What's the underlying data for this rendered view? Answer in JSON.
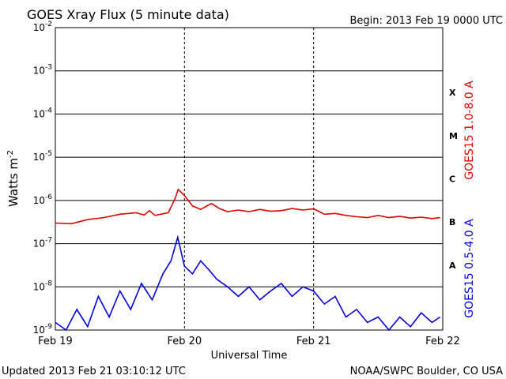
{
  "header": {
    "title": "GOES Xray Flux (5 minute data)",
    "begin": "Begin:  2013 Feb 19 0000 UTC"
  },
  "footer": {
    "updated": "Updated 2013 Feb 21 03:10:12 UTC",
    "credit": "NOAA/SWPC Boulder, CO USA"
  },
  "chart_data": {
    "type": "line",
    "title": "GOES Xray Flux (5 minute data)",
    "xlabel": "Universal Time",
    "ylabel": "Watts m",
    "ylabel_sup": "-2",
    "yscale": "log",
    "ylim": [
      1e-09,
      0.01
    ],
    "xlim": [
      "2013-02-19T00:00",
      "2013-02-22T00:00"
    ],
    "x_ticks": [
      "Feb 19",
      "Feb 20",
      "Feb 21",
      "Feb 22"
    ],
    "y_ticks": [
      {
        "base": "10",
        "exp": "-2"
      },
      {
        "base": "10",
        "exp": "-3"
      },
      {
        "base": "10",
        "exp": "-4"
      },
      {
        "base": "10",
        "exp": "-5"
      },
      {
        "base": "10",
        "exp": "-6"
      },
      {
        "base": "10",
        "exp": "-7"
      },
      {
        "base": "10",
        "exp": "-8"
      },
      {
        "base": "10",
        "exp": "-9"
      }
    ],
    "flare_classes": [
      "X",
      "M",
      "C",
      "B",
      "A"
    ],
    "grid": true,
    "series": [
      {
        "name": "GOES15 1.0-8.0 A",
        "color": "#e00000",
        "points": [
          [
            "2013-02-19T00:00",
            3e-07
          ],
          [
            "2013-02-19T03:00",
            2.9e-07
          ],
          [
            "2013-02-19T06:00",
            3.6e-07
          ],
          [
            "2013-02-19T09:00",
            4e-07
          ],
          [
            "2013-02-19T12:00",
            4.8e-07
          ],
          [
            "2013-02-19T15:00",
            5.2e-07
          ],
          [
            "2013-02-19T16:30",
            4.6e-07
          ],
          [
            "2013-02-19T17:30",
            5.8e-07
          ],
          [
            "2013-02-19T18:30",
            4.5e-07
          ],
          [
            "2013-02-19T21:00",
            5.2e-07
          ],
          [
            "2013-02-19T22:15",
            1.1e-06
          ],
          [
            "2013-02-19T22:50",
            1.8e-06
          ],
          [
            "2013-02-20T00:00",
            1.3e-06
          ],
          [
            "2013-02-20T01:30",
            7.5e-07
          ],
          [
            "2013-02-20T03:00",
            6.2e-07
          ],
          [
            "2013-02-20T05:00",
            8.5e-07
          ],
          [
            "2013-02-20T06:30",
            6.5e-07
          ],
          [
            "2013-02-20T08:00",
            5.5e-07
          ],
          [
            "2013-02-20T10:00",
            6e-07
          ],
          [
            "2013-02-20T12:00",
            5.5e-07
          ],
          [
            "2013-02-20T14:00",
            6.2e-07
          ],
          [
            "2013-02-20T16:00",
            5.6e-07
          ],
          [
            "2013-02-20T18:00",
            5.8e-07
          ],
          [
            "2013-02-20T20:00",
            6.5e-07
          ],
          [
            "2013-02-20T22:00",
            6e-07
          ],
          [
            "2013-02-21T00:00",
            6.4e-07
          ],
          [
            "2013-02-21T02:00",
            4.8e-07
          ],
          [
            "2013-02-21T04:00",
            5e-07
          ],
          [
            "2013-02-21T06:00",
            4.5e-07
          ],
          [
            "2013-02-21T08:00",
            4.2e-07
          ],
          [
            "2013-02-21T10:00",
            4e-07
          ],
          [
            "2013-02-21T12:00",
            4.5e-07
          ],
          [
            "2013-02-21T14:00",
            4e-07
          ],
          [
            "2013-02-21T16:00",
            4.3e-07
          ],
          [
            "2013-02-21T18:00",
            3.9e-07
          ],
          [
            "2013-02-21T20:00",
            4.1e-07
          ],
          [
            "2013-02-21T22:00",
            3.8e-07
          ],
          [
            "2013-02-21T23:30",
            4e-07
          ]
        ]
      },
      {
        "name": "GOES15 0.5-4.0 A",
        "color": "#0000e0",
        "points": [
          [
            "2013-02-19T00:00",
            1.5e-09
          ],
          [
            "2013-02-19T02:00",
            1e-09
          ],
          [
            "2013-02-19T04:00",
            3e-09
          ],
          [
            "2013-02-19T06:00",
            1.2e-09
          ],
          [
            "2013-02-19T08:00",
            6e-09
          ],
          [
            "2013-02-19T10:00",
            2e-09
          ],
          [
            "2013-02-19T12:00",
            8e-09
          ],
          [
            "2013-02-19T14:00",
            3e-09
          ],
          [
            "2013-02-19T16:00",
            1.2e-08
          ],
          [
            "2013-02-19T18:00",
            5e-09
          ],
          [
            "2013-02-19T20:00",
            2e-08
          ],
          [
            "2013-02-19T21:30",
            4e-08
          ],
          [
            "2013-02-19T22:45",
            1.4e-07
          ],
          [
            "2013-02-20T00:00",
            3e-08
          ],
          [
            "2013-02-20T01:30",
            2e-08
          ],
          [
            "2013-02-20T03:00",
            4e-08
          ],
          [
            "2013-02-20T04:30",
            2.5e-08
          ],
          [
            "2013-02-20T06:00",
            1.5e-08
          ],
          [
            "2013-02-20T08:00",
            1e-08
          ],
          [
            "2013-02-20T10:00",
            6e-09
          ],
          [
            "2013-02-20T12:00",
            1e-08
          ],
          [
            "2013-02-20T14:00",
            5e-09
          ],
          [
            "2013-02-20T16:00",
            8e-09
          ],
          [
            "2013-02-20T18:00",
            1.2e-08
          ],
          [
            "2013-02-20T20:00",
            6e-09
          ],
          [
            "2013-02-20T22:00",
            1e-08
          ],
          [
            "2013-02-21T00:00",
            8e-09
          ],
          [
            "2013-02-21T02:00",
            4e-09
          ],
          [
            "2013-02-21T04:00",
            6e-09
          ],
          [
            "2013-02-21T06:00",
            2e-09
          ],
          [
            "2013-02-21T08:00",
            3e-09
          ],
          [
            "2013-02-21T10:00",
            1.5e-09
          ],
          [
            "2013-02-21T12:00",
            2e-09
          ],
          [
            "2013-02-21T14:00",
            1e-09
          ],
          [
            "2013-02-21T16:00",
            2e-09
          ],
          [
            "2013-02-21T18:00",
            1.2e-09
          ],
          [
            "2013-02-21T20:00",
            2.5e-09
          ],
          [
            "2013-02-21T22:00",
            1.5e-09
          ],
          [
            "2013-02-21T23:30",
            2e-09
          ]
        ]
      }
    ]
  }
}
